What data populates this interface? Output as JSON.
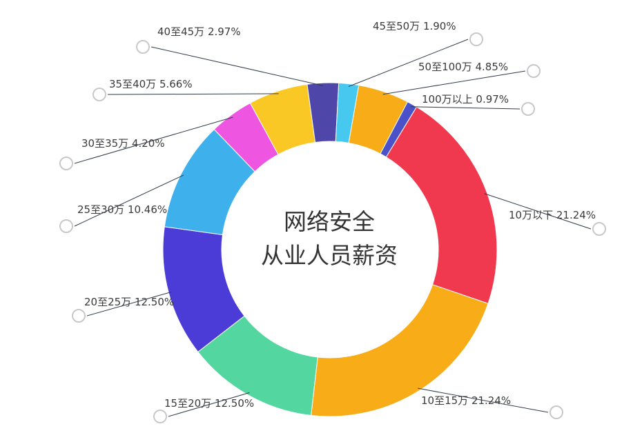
{
  "chart_data": {
    "type": "pie",
    "variant": "donut",
    "title": "网络安全从业人员薪资",
    "center_title_lines": [
      "网络安全",
      "从业人员薪资"
    ],
    "slices": [
      {
        "label": "10万以下",
        "value": 21.24,
        "value_text": "21.24%",
        "color": "#f0384f"
      },
      {
        "label": "10至15万",
        "value": 21.24,
        "value_text": "21.24%",
        "color": "#f8ac17"
      },
      {
        "label": "15至20万",
        "value": 12.5,
        "value_text": "12.50%",
        "color": "#54d6a0"
      },
      {
        "label": "20至25万",
        "value": 12.5,
        "value_text": "12.50%",
        "color": "#4b3cd8"
      },
      {
        "label": "25至30万",
        "value": 10.46,
        "value_text": "10.46%",
        "color": "#3eb0ec"
      },
      {
        "label": "30至35万",
        "value": 4.2,
        "value_text": "4.20%",
        "color": "#ee55e0"
      },
      {
        "label": "35至40万",
        "value": 5.66,
        "value_text": "5.66%",
        "color": "#f9c824"
      },
      {
        "label": "40至45万",
        "value": 2.97,
        "value_text": "2.97%",
        "color": "#4e46a8"
      },
      {
        "label": "45至50万",
        "value": 1.9,
        "value_text": "1.90%",
        "color": "#47c9ef"
      },
      {
        "label": "50至100万",
        "value": 4.85,
        "value_text": "4.85%",
        "color": "#f8ac17"
      },
      {
        "label": "100万以上",
        "value": 0.97,
        "value_text": "0.97%",
        "color": "#4b52c9"
      }
    ]
  }
}
